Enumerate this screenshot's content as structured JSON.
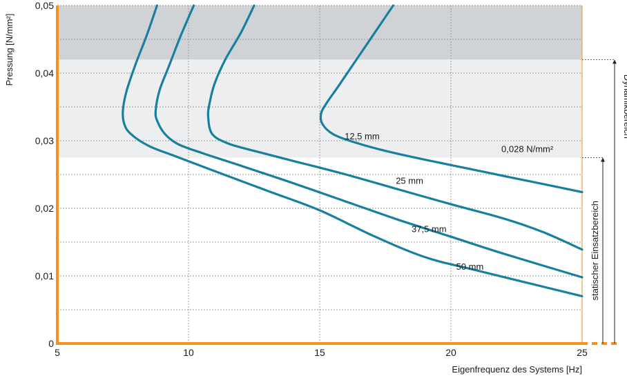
{
  "chart_data": {
    "type": "line",
    "title": "",
    "xlabel": "Eigenfrequenz des Systems [Hz]",
    "ylabel": "Pressung [N/mm²]",
    "xlim": [
      5,
      25
    ],
    "ylim": [
      0,
      0.05
    ],
    "x_ticks": [
      5,
      10,
      15,
      20,
      25
    ],
    "x_tick_labels": [
      "5",
      "10",
      "15",
      "20",
      "25"
    ],
    "y_ticks": [
      0,
      0.01,
      0.02,
      0.03,
      0.04,
      0.05
    ],
    "y_tick_labels": [
      "0",
      "0,01",
      "0,02",
      "0,03",
      "0,04",
      "0,05"
    ],
    "grid": true,
    "colors": {
      "line": "#17809f",
      "axis": "#f5921e",
      "band_dark": "#d0d3d6",
      "band_light": "#eceeef",
      "grid": "#9a9a9a"
    },
    "bands": [
      {
        "y0": 0.042,
        "y1": 0.05,
        "color": "#d0d3d6"
      },
      {
        "y0": 0.0275,
        "y1": 0.042,
        "color": "#eceeef"
      }
    ],
    "series": [
      {
        "name": "12,5 mm",
        "label_at": [
          15.95,
          0.0302
        ],
        "x": [
          17.8,
          17.1,
          16.4,
          15.7,
          15.25,
          15.05,
          15.1,
          15.5,
          16.3,
          17.5,
          19.0,
          20.5,
          22.0,
          23.5,
          25.0
        ],
        "y": [
          0.05,
          0.046,
          0.042,
          0.038,
          0.0355,
          0.034,
          0.0325,
          0.031,
          0.0298,
          0.0285,
          0.0272,
          0.026,
          0.0248,
          0.0236,
          0.0224
        ]
      },
      {
        "name": "25 mm",
        "label_at": [
          17.9,
          0.0236
        ],
        "x": [
          12.5,
          12.0,
          11.4,
          11.0,
          10.8,
          10.75,
          10.9,
          11.5,
          12.5,
          14.0,
          16.0,
          18.0,
          20.0,
          22.0,
          23.5,
          25.0
        ],
        "y": [
          0.05,
          0.046,
          0.042,
          0.0385,
          0.0355,
          0.0335,
          0.031,
          0.0296,
          0.0285,
          0.027,
          0.025,
          0.0228,
          0.0206,
          0.0185,
          0.0165,
          0.0139
        ]
      },
      {
        "name": "37,5 mm",
        "label_at": [
          18.5,
          0.0165
        ],
        "x": [
          10.2,
          9.7,
          9.25,
          8.9,
          8.75,
          8.8,
          9.1,
          9.6,
          10.5,
          12.0,
          14.0,
          16.0,
          18.0,
          20.0,
          22.0,
          25.0
        ],
        "y": [
          0.05,
          0.0455,
          0.041,
          0.0375,
          0.0345,
          0.033,
          0.031,
          0.0295,
          0.0282,
          0.0263,
          0.0237,
          0.021,
          0.0183,
          0.0158,
          0.0133,
          0.0098
        ]
      },
      {
        "name": "50 mm",
        "label_at": [
          20.2,
          0.0109
        ],
        "x": [
          8.8,
          8.4,
          8.0,
          7.65,
          7.5,
          7.55,
          7.8,
          8.5,
          9.5,
          11.0,
          13.0,
          15.0,
          17.0,
          19.0,
          21.0,
          25.0
        ],
        "y": [
          0.05,
          0.0455,
          0.0415,
          0.0375,
          0.0345,
          0.0325,
          0.031,
          0.0292,
          0.0277,
          0.0255,
          0.0226,
          0.0197,
          0.016,
          0.0128,
          0.0108,
          0.007
        ]
      }
    ],
    "annotations": [
      {
        "text": "0,028 N/mm²",
        "x": 23.9,
        "y": 0.0283
      },
      {
        "text": "statischer Einsatzbereich",
        "range": [
          0,
          0.0275
        ]
      },
      {
        "text": "Dynamikbereich",
        "range": [
          0,
          0.042
        ]
      }
    ]
  }
}
